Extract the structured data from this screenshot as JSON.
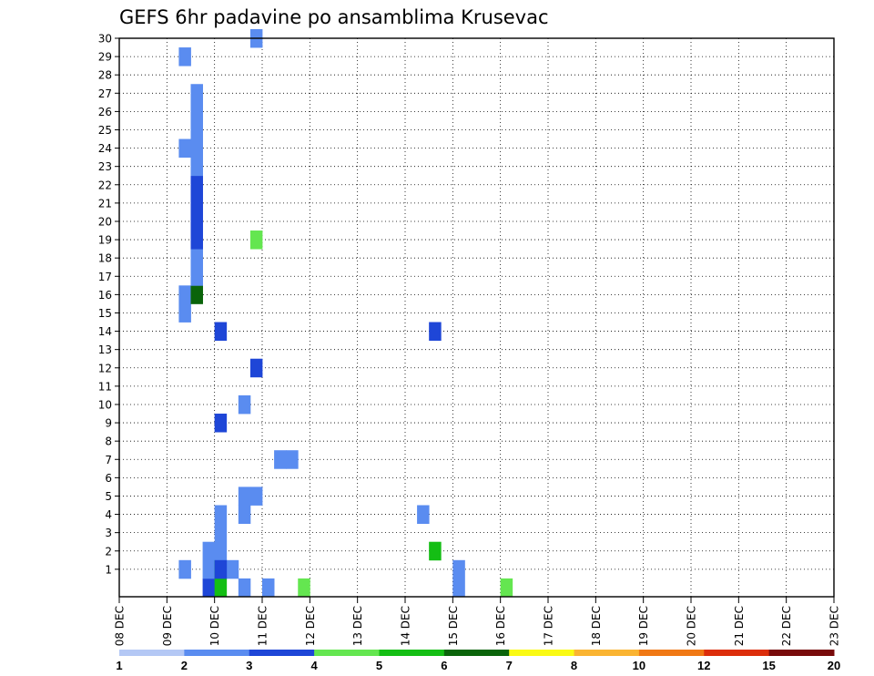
{
  "chart_data": {
    "type": "heatmap",
    "title": "GEFS 6hr padavine po ansamblima Krusevac",
    "x_ticks": [
      "08 DEC",
      "09 DEC",
      "10 DEC",
      "11 DEC",
      "12 DEC",
      "13 DEC",
      "14 DEC",
      "15 DEC",
      "16 DEC",
      "17 DEC",
      "18 DEC",
      "19 DEC",
      "20 DEC",
      "21 DEC",
      "22 DEC",
      "23 DEC"
    ],
    "y_ticks": [
      1,
      2,
      3,
      4,
      5,
      6,
      7,
      8,
      9,
      10,
      11,
      12,
      13,
      14,
      15,
      16,
      17,
      18,
      19,
      20,
      21,
      22,
      23,
      24,
      25,
      26,
      27,
      28,
      29,
      30
    ],
    "x_range": [
      "08 DEC",
      "23 DEC"
    ],
    "y_range": [
      0,
      30
    ],
    "time_step_hours": 6,
    "grid": true,
    "colorbar": {
      "placement": "bottom",
      "labels": [
        "1",
        "2",
        "3",
        "4",
        "5",
        "6",
        "7",
        "8",
        "10",
        "12",
        "15",
        "20"
      ],
      "colors": [
        "#b4c8f5",
        "#5a8cf0",
        "#1e46d7",
        "#64e650",
        "#14be14",
        "#0a640a",
        "#fafa14",
        "#fab432",
        "#f07814",
        "#dc2d0a",
        "#780a0a"
      ]
    },
    "cells": [
      [
        "09 DEC",
        0,
        [
          [
            0,
            0,
            3
          ]
        ]
      ],
      [
        "09 DEC",
        1,
        [
          [
            1,
            2,
            1
          ],
          [
            15,
            17,
            1
          ],
          [
            24,
            25,
            1
          ],
          [
            29,
            30,
            1
          ]
        ]
      ],
      [
        "09 DEC",
        2,
        [
          [
            16,
            17,
            5
          ],
          [
            17,
            19,
            1
          ],
          [
            19,
            23,
            2
          ],
          [
            23,
            28,
            1
          ]
        ]
      ],
      [
        "09 DEC",
        3,
        [
          [
            0,
            1,
            2
          ],
          [
            1,
            3,
            1
          ]
        ]
      ],
      [
        "09 DEC",
        4,
        [
          [
            0,
            2,
            4
          ],
          [
            2,
            5,
            1
          ]
        ]
      ],
      [
        "09 DEC",
        5,
        [
          [
            1,
            2,
            1
          ]
        ]
      ],
      [
        "10 DEC",
        0,
        [
          [
            1,
            2,
            2
          ],
          [
            9,
            10,
            2
          ],
          [
            14,
            15,
            2
          ]
        ]
      ],
      [
        "10 DEC",
        3,
        [
          [
            12,
            13,
            2
          ],
          [
            30,
            31,
            1
          ]
        ]
      ],
      [
        "10 DEC",
        2,
        [
          [
            0,
            1,
            1
          ],
          [
            4,
            5,
            1
          ],
          [
            5,
            6,
            1
          ],
          [
            10,
            11,
            1
          ]
        ]
      ],
      [
        "10 DEC",
        3,
        [
          [
            5,
            6,
            1
          ],
          [
            19,
            20,
            3
          ]
        ]
      ],
      [
        "10 DEC",
        4,
        [
          [
            0,
            1,
            1
          ]
        ]
      ],
      [
        "11 DEC",
        1,
        [
          [
            7,
            8,
            1
          ]
        ]
      ],
      [
        "11 DEC",
        2,
        [
          [
            7,
            8,
            1
          ]
        ]
      ],
      [
        "11 DEC",
        3,
        [
          [
            0,
            1,
            3
          ]
        ]
      ],
      [
        "14 DEC",
        1,
        [
          [
            4,
            5,
            1
          ]
        ]
      ],
      [
        "14 DEC",
        2,
        [
          [
            2,
            3,
            4
          ],
          [
            14,
            15,
            2
          ]
        ]
      ],
      [
        "15 DEC",
        0,
        [
          [
            0,
            2,
            1
          ]
        ]
      ],
      [
        "16 DEC",
        0,
        [
          [
            0,
            1,
            3
          ]
        ]
      ]
    ]
  }
}
